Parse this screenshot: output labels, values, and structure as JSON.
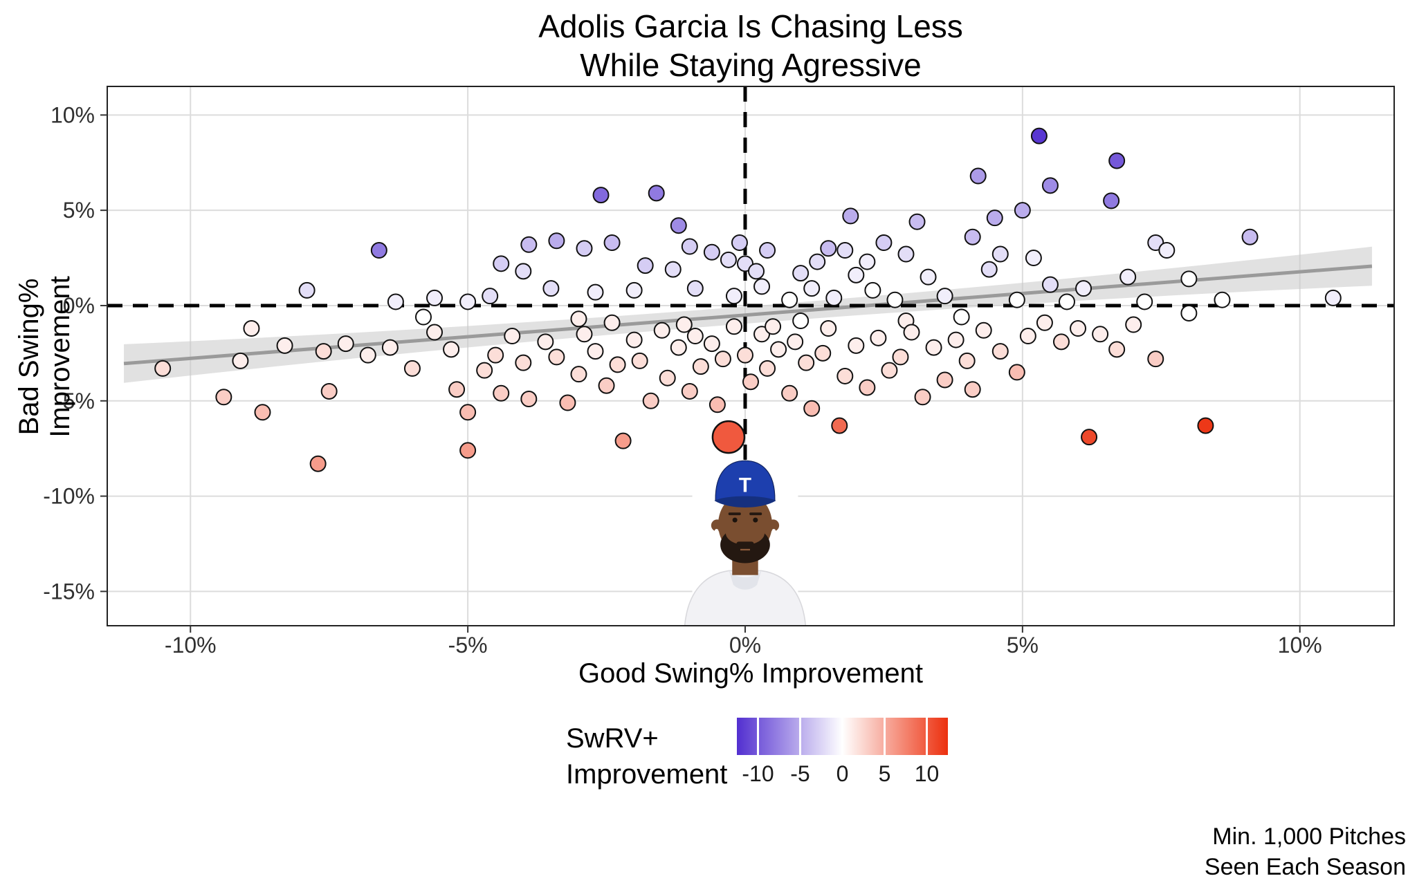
{
  "title": {
    "line1": "Adolis Garcia Is Chasing Less",
    "line2": "While Staying Agressive"
  },
  "axes": {
    "x": {
      "label": "Good Swing% Improvement",
      "ticks": [
        -10,
        -5,
        0,
        5,
        10
      ],
      "tick_labels": [
        "-10%",
        "-5%",
        "0%",
        "5%",
        "10%"
      ],
      "domain": [
        -11.5,
        11.7
      ]
    },
    "y": {
      "label": "Bad Swing% Improvement",
      "ticks": [
        10,
        5,
        0,
        -5,
        -10,
        -15
      ],
      "tick_labels": [
        "10%",
        "5%",
        "0%",
        "-5%",
        "-10%",
        "-15%"
      ],
      "domain": [
        -16.8,
        11.5
      ]
    }
  },
  "legend": {
    "title_line1": "SwRV+",
    "title_line2": "Improvement",
    "ticks": [
      -10,
      -5,
      0,
      5,
      10
    ],
    "tick_labels": [
      "-10",
      "-5",
      "0",
      "5",
      "10"
    ],
    "domain": [
      -12.5,
      12.5
    ],
    "colors": {
      "low": "#522fd0",
      "mid": "#ffffff",
      "high": "#ec300e"
    }
  },
  "caption": {
    "line1": "Min. 1,000 Pitches",
    "line2": "Seen Each Season"
  },
  "player_image": {
    "alt": "Adolis Garcia wearing Texas Rangers cap",
    "cap_letter": "T",
    "cap_color": "#1d3fae",
    "skin_color": "#7a4e30",
    "beard_color": "#241811",
    "jersey_color": "#f2f2f5"
  },
  "style": {
    "grid_color": "#dcdcdc",
    "panel_border": "#222222",
    "refline_color": "#000000",
    "tick_label_color": "#303030",
    "point_stroke": "#111111"
  },
  "chart_data": {
    "type": "scatter",
    "title": "Adolis Garcia Is Chasing Less While Staying Agressive",
    "xlabel": "Good Swing% Improvement",
    "ylabel": "Bad Swing% Improvement",
    "color_label": "SwRV+ Improvement",
    "xlim": [
      -11.5,
      11.7
    ],
    "ylim": [
      -16.8,
      11.5
    ],
    "grid": true,
    "legend_position": "bottom",
    "reference_lines": {
      "x": 0,
      "y": 0
    },
    "regression": {
      "x_start": -11.2,
      "x_end": 11.3,
      "slope": 0.227,
      "intercept": -0.5,
      "band_base": 0.45,
      "band_quad": 0.0045,
      "line_color": "#9a9a9a",
      "band_color": "#c9c9c9"
    },
    "highlight": {
      "label": "Adolis Garcia",
      "x": -0.3,
      "y": -6.9,
      "c": 10,
      "r": 23
    },
    "point_radius": 11,
    "points": [
      [
        5.3,
        8.9,
        -12
      ],
      [
        6.7,
        7.6,
        -10
      ],
      [
        4.2,
        6.8,
        -6
      ],
      [
        5.5,
        6.3,
        -7
      ],
      [
        -2.6,
        5.8,
        -9
      ],
      [
        -1.6,
        5.9,
        -8
      ],
      [
        6.6,
        5.5,
        -8
      ],
      [
        5.0,
        5.0,
        -5
      ],
      [
        1.9,
        4.7,
        -5
      ],
      [
        3.1,
        4.4,
        -4
      ],
      [
        -1.2,
        4.2,
        -7
      ],
      [
        4.5,
        4.6,
        -5
      ],
      [
        4.1,
        3.6,
        -4
      ],
      [
        9.1,
        3.6,
        -4
      ],
      [
        -6.6,
        2.9,
        -8
      ],
      [
        -3.9,
        3.2,
        -4
      ],
      [
        -3.4,
        3.4,
        -5
      ],
      [
        -2.9,
        3.0,
        -3
      ],
      [
        -2.4,
        3.3,
        -4
      ],
      [
        -1.0,
        3.1,
        -3
      ],
      [
        -0.1,
        3.3,
        -3
      ],
      [
        0.4,
        2.9,
        -3
      ],
      [
        1.5,
        3.0,
        -4
      ],
      [
        1.8,
        2.9,
        -2
      ],
      [
        2.5,
        3.3,
        -3
      ],
      [
        2.9,
        2.7,
        -2
      ],
      [
        4.6,
        2.7,
        -2
      ],
      [
        5.2,
        2.5,
        -1
      ],
      [
        7.4,
        3.3,
        -2
      ],
      [
        7.6,
        2.9,
        -1
      ],
      [
        -4.4,
        2.2,
        -3
      ],
      [
        -4.0,
        1.8,
        -2
      ],
      [
        -1.8,
        2.1,
        -3
      ],
      [
        -1.3,
        1.9,
        -2
      ],
      [
        -0.6,
        2.8,
        -3
      ],
      [
        -0.3,
        2.4,
        -2
      ],
      [
        0.0,
        2.2,
        -2
      ],
      [
        0.2,
        1.8,
        -2
      ],
      [
        1.0,
        1.7,
        -2
      ],
      [
        1.3,
        2.3,
        -2
      ],
      [
        2.0,
        1.6,
        -1
      ],
      [
        2.2,
        2.3,
        -1
      ],
      [
        3.3,
        1.5,
        -1
      ],
      [
        4.4,
        1.9,
        -2
      ],
      [
        5.5,
        1.1,
        -2
      ],
      [
        6.9,
        1.5,
        -1
      ],
      [
        8.0,
        1.4,
        0
      ],
      [
        -7.9,
        0.8,
        -2
      ],
      [
        -6.3,
        0.2,
        -1
      ],
      [
        -5.6,
        0.4,
        -1
      ],
      [
        -5.0,
        0.2,
        -1
      ],
      [
        -4.6,
        0.5,
        -2
      ],
      [
        -3.5,
        0.9,
        -2
      ],
      [
        -2.7,
        0.7,
        -1
      ],
      [
        -2.0,
        0.8,
        -1
      ],
      [
        -0.9,
        0.9,
        -2
      ],
      [
        -0.2,
        0.5,
        -1
      ],
      [
        0.3,
        1.0,
        -1
      ],
      [
        0.8,
        0.3,
        0
      ],
      [
        1.2,
        0.9,
        -1
      ],
      [
        1.6,
        0.4,
        -1
      ],
      [
        2.3,
        0.8,
        0
      ],
      [
        2.7,
        0.3,
        0
      ],
      [
        3.6,
        0.5,
        -1
      ],
      [
        4.9,
        0.3,
        0
      ],
      [
        5.8,
        0.2,
        0
      ],
      [
        6.1,
        0.9,
        -1
      ],
      [
        7.2,
        0.2,
        0
      ],
      [
        8.6,
        0.3,
        0
      ],
      [
        10.6,
        0.4,
        -1
      ],
      [
        -10.5,
        -3.3,
        2
      ],
      [
        -9.4,
        -4.8,
        3
      ],
      [
        -9.1,
        -2.9,
        1
      ],
      [
        -8.9,
        -1.2,
        1
      ],
      [
        -8.7,
        -5.6,
        4
      ],
      [
        -8.3,
        -2.1,
        1
      ],
      [
        -7.7,
        -8.3,
        6
      ],
      [
        -7.6,
        -2.4,
        2
      ],
      [
        -7.5,
        -4.5,
        3
      ],
      [
        -7.2,
        -2.0,
        1
      ],
      [
        -6.8,
        -2.6,
        1
      ],
      [
        -6.4,
        -2.2,
        1
      ],
      [
        -6.0,
        -3.3,
        2
      ],
      [
        -5.8,
        -0.6,
        0
      ],
      [
        -5.6,
        -1.4,
        1
      ],
      [
        -5.3,
        -2.3,
        1
      ],
      [
        -5.2,
        -4.4,
        3
      ],
      [
        -5.0,
        -5.6,
        4
      ],
      [
        -5.0,
        -7.6,
        6
      ],
      [
        -4.7,
        -3.4,
        2
      ],
      [
        -4.5,
        -2.6,
        2
      ],
      [
        -4.4,
        -4.6,
        3
      ],
      [
        -4.2,
        -1.6,
        1
      ],
      [
        -4.0,
        -3.0,
        2
      ],
      [
        -3.9,
        -4.9,
        3
      ],
      [
        -3.6,
        -1.9,
        1
      ],
      [
        -3.4,
        -2.7,
        2
      ],
      [
        -3.2,
        -5.1,
        4
      ],
      [
        -3.0,
        -3.6,
        2
      ],
      [
        -3.0,
        -0.7,
        1
      ],
      [
        -2.9,
        -1.5,
        1
      ],
      [
        -2.7,
        -2.4,
        1
      ],
      [
        -2.5,
        -4.2,
        3
      ],
      [
        -2.4,
        -0.9,
        1
      ],
      [
        -2.3,
        -3.1,
        2
      ],
      [
        -2.2,
        -7.1,
        6
      ],
      [
        -2.0,
        -1.8,
        1
      ],
      [
        -1.9,
        -2.9,
        2
      ],
      [
        -1.7,
        -5.0,
        3
      ],
      [
        -1.5,
        -1.3,
        1
      ],
      [
        -1.4,
        -3.8,
        2
      ],
      [
        -1.2,
        -2.2,
        1
      ],
      [
        -1.1,
        -1.0,
        1
      ],
      [
        -1.0,
        -4.5,
        3
      ],
      [
        -0.9,
        -1.6,
        1
      ],
      [
        -0.8,
        -3.2,
        2
      ],
      [
        -0.6,
        -2.0,
        1
      ],
      [
        -0.5,
        -5.2,
        4
      ],
      [
        -0.4,
        -2.8,
        2
      ],
      [
        -0.2,
        -1.1,
        1
      ],
      [
        0.0,
        -2.6,
        2
      ],
      [
        0.1,
        -4.0,
        3
      ],
      [
        0.3,
        -1.5,
        1
      ],
      [
        0.4,
        -3.3,
        2
      ],
      [
        0.5,
        -1.1,
        1
      ],
      [
        0.6,
        -2.3,
        1
      ],
      [
        0.8,
        -4.6,
        3
      ],
      [
        0.9,
        -1.9,
        1
      ],
      [
        1.0,
        -0.8,
        0
      ],
      [
        1.1,
        -3.0,
        2
      ],
      [
        1.2,
        -5.4,
        4
      ],
      [
        1.4,
        -2.5,
        2
      ],
      [
        1.5,
        -1.2,
        1
      ],
      [
        1.7,
        -6.3,
        9
      ],
      [
        1.8,
        -3.7,
        2
      ],
      [
        2.0,
        -2.1,
        1
      ],
      [
        2.2,
        -4.3,
        3
      ],
      [
        2.4,
        -1.7,
        1
      ],
      [
        2.6,
        -3.4,
        2
      ],
      [
        2.8,
        -2.7,
        2
      ],
      [
        2.9,
        -0.8,
        1
      ],
      [
        3.0,
        -1.4,
        1
      ],
      [
        3.2,
        -4.8,
        3
      ],
      [
        3.4,
        -2.2,
        1
      ],
      [
        3.6,
        -3.9,
        3
      ],
      [
        3.8,
        -1.8,
        1
      ],
      [
        3.9,
        -0.6,
        0
      ],
      [
        4.0,
        -2.9,
        2
      ],
      [
        4.1,
        -4.4,
        3
      ],
      [
        4.3,
        -1.3,
        1
      ],
      [
        4.6,
        -2.4,
        2
      ],
      [
        4.9,
        -3.5,
        4
      ],
      [
        5.1,
        -1.6,
        1
      ],
      [
        5.4,
        -0.9,
        1
      ],
      [
        5.7,
        -1.9,
        2
      ],
      [
        6.0,
        -1.2,
        1
      ],
      [
        6.2,
        -6.9,
        11
      ],
      [
        6.4,
        -1.5,
        1
      ],
      [
        6.7,
        -2.3,
        2
      ],
      [
        7.0,
        -1.0,
        1
      ],
      [
        7.4,
        -2.8,
        3
      ],
      [
        8.0,
        -0.4,
        0
      ],
      [
        8.3,
        -6.3,
        12
      ]
    ]
  }
}
